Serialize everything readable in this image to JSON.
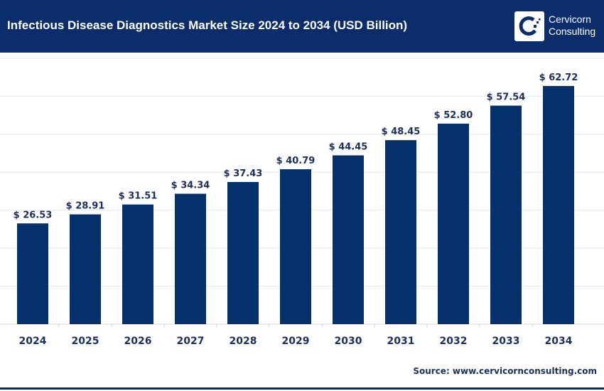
{
  "header": {
    "title": "Infectious Disease Diagnostics Market Size 2024 to 2034 (USD Billion)",
    "logo_text_line1": "Cervicorn",
    "logo_text_line2": "Consulting"
  },
  "source": "Source: www.cervicornconsulting.com",
  "colors": {
    "header": "#0b2d6b",
    "bar": "#04306b",
    "label": "#1a2f5e",
    "grid": "#e6e6e6"
  },
  "chart_data": {
    "type": "bar",
    "title": "Infectious Disease Diagnostics Market Size 2024 to 2034 (USD Billion)",
    "categories": [
      "2024",
      "2025",
      "2026",
      "2027",
      "2028",
      "2029",
      "2030",
      "2031",
      "2032",
      "2033",
      "2034"
    ],
    "values": [
      26.53,
      28.91,
      31.51,
      34.34,
      37.43,
      40.79,
      44.45,
      48.45,
      52.8,
      57.54,
      62.72
    ],
    "data_labels": [
      "$ 26.53",
      "$ 28.91",
      "$ 31.51",
      "$ 34.34",
      "$ 37.43",
      "$ 40.79",
      "$ 44.45",
      "$ 48.45",
      "$ 52.80",
      "$ 57.54",
      "$ 62.72"
    ],
    "ylim": [
      0,
      70
    ],
    "grid": true,
    "xlabel": "",
    "ylabel": ""
  }
}
